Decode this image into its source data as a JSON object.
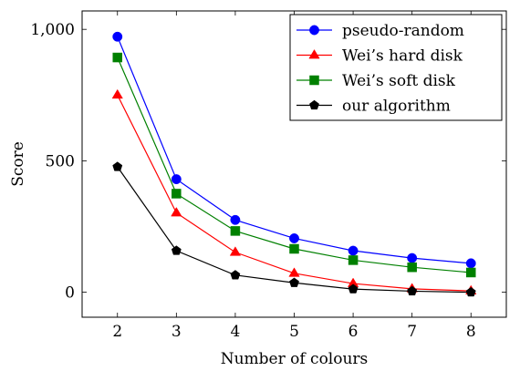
{
  "chart_data": {
    "type": "line",
    "xlabel": "Number of colours",
    "ylabel": "Score",
    "x": [
      2,
      3,
      4,
      5,
      6,
      7,
      8
    ],
    "xlim": [
      1.4,
      8.6
    ],
    "ylim": [
      -95,
      1070
    ],
    "xticks": [
      2,
      3,
      4,
      5,
      6,
      7,
      8
    ],
    "xtick_labels": [
      "2",
      "3",
      "4",
      "5",
      "6",
      "7",
      "8"
    ],
    "yticks": [
      0,
      500,
      1000
    ],
    "ytick_labels": [
      "0",
      "500",
      "1,000"
    ],
    "grid": false,
    "legend_position": "top-right",
    "series": [
      {
        "name": "pseudo-random",
        "color": "#0000ff",
        "marker": "circle",
        "values": [
          972,
          430,
          275,
          205,
          158,
          130,
          110
        ]
      },
      {
        "name": "Wei’s hard disk",
        "color": "#ff0000",
        "marker": "triangle",
        "values": [
          750,
          302,
          152,
          72,
          33,
          13,
          5
        ]
      },
      {
        "name": "Wei’s soft disk",
        "color": "#008000",
        "marker": "square",
        "values": [
          893,
          375,
          233,
          165,
          122,
          95,
          75
        ]
      },
      {
        "name": "our algorithm",
        "color": "#000000",
        "marker": "pentagon",
        "values": [
          477,
          158,
          65,
          36,
          12,
          4,
          0
        ]
      }
    ]
  }
}
